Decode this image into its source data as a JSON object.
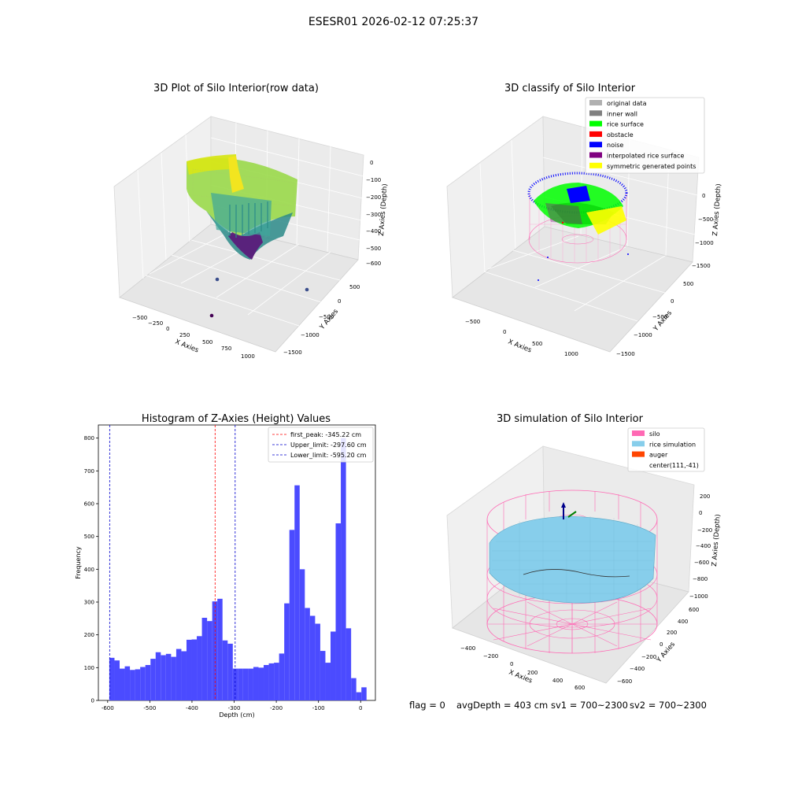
{
  "figure_title": "ESESR01 2026-02-12 07:25:37",
  "footer": {
    "flag": "flag = 0",
    "avg_depth": "avgDepth = 403 cm",
    "sv1": "sv1 = 700~2300",
    "sv2": "sv2 = 700~2300"
  },
  "colors": {
    "original": "#b0b0b0",
    "inner_wall": "#808080",
    "rice_surface": "#00ff00",
    "obstacle": "#ff0000",
    "noise": "#0000ff",
    "interp": "#800080",
    "symmetric": "#ffff00",
    "silo": "#ff69b4",
    "rice_sim": "#87ceeb",
    "auger": "#ff4500",
    "hist_bar": "#4b4bff",
    "peak_line": "#ff0000",
    "limit_line": "#0000cd"
  },
  "chart_data": [
    {
      "type": "scatter3d",
      "title": "3D Plot of Silo Interior(row data)",
      "xlabel": "X Axies",
      "ylabel": "Y Axies",
      "zlabel": "Z Axies (Depth)",
      "x_ticks": [
        "−500",
        "−250",
        "0",
        "250",
        "500",
        "750",
        "1000"
      ],
      "y_ticks": [
        "500",
        "0",
        "−500",
        "−1000",
        "−1500"
      ],
      "z_ticks": [
        "0",
        "−100",
        "−200",
        "−300",
        "−400",
        "−500",
        "−600"
      ]
    },
    {
      "type": "scatter3d",
      "title": "3D classify of Silo Interior",
      "xlabel": "X Axies",
      "ylabel": "Y Axies",
      "zlabel": "Z Axies (Depth)",
      "x_ticks": [
        "−500",
        "0",
        "500",
        "1000"
      ],
      "y_ticks": [
        "500",
        "0",
        "−500",
        "−1000",
        "−1500"
      ],
      "z_ticks": [
        "0",
        "−500",
        "−1000",
        "−1500"
      ],
      "legend": {
        "placement": "upper-right",
        "entries": [
          {
            "label": "original data",
            "color": "#b0b0b0"
          },
          {
            "label": "inner wall",
            "color": "#808080"
          },
          {
            "label": "rice surface",
            "color": "#00ff00"
          },
          {
            "label": "obstacle",
            "color": "#ff0000"
          },
          {
            "label": "noise",
            "color": "#0000ff"
          },
          {
            "label": "interpolated rice surface",
            "color": "#800080"
          },
          {
            "label": "symmetric generated points",
            "color": "#ffff00"
          }
        ]
      }
    },
    {
      "type": "bar",
      "title": "Histogram of Z-Axies (Height) Values",
      "xlabel": "Depth (cm)",
      "ylabel": "Frequency",
      "xlim": [
        -622,
        35
      ],
      "ylim": [
        0,
        840
      ],
      "x_ticks": [
        -600,
        -500,
        -400,
        -300,
        -200,
        -100,
        0
      ],
      "y_ticks": [
        0,
        100,
        200,
        300,
        400,
        500,
        600,
        700,
        800
      ],
      "bin_start": -596,
      "bin_width": 12.2,
      "values": [
        130,
        122,
        97,
        104,
        93,
        95,
        102,
        108,
        127,
        147,
        138,
        142,
        133,
        157,
        150,
        185,
        186,
        196,
        252,
        242,
        302,
        310,
        183,
        173,
        97,
        97,
        97,
        97,
        102,
        100,
        108,
        113,
        115,
        143,
        296,
        520,
        656,
        400,
        282,
        258,
        234,
        151,
        115,
        210,
        540,
        800,
        220,
        68,
        25,
        40
      ],
      "vlines": [
        {
          "label": "first_peak: -345.22 cm",
          "x": -345.22,
          "color": "#ff0000"
        },
        {
          "label": "Upper_limit: -297.60 cm",
          "x": -297.6,
          "color": "#0000cd"
        },
        {
          "label": "Lower_limit: -595.20 cm",
          "x": -595.2,
          "color": "#0000cd"
        }
      ]
    },
    {
      "type": "surface3d",
      "title": "3D simulation of Silo Interior",
      "xlabel": "X Axies",
      "ylabel": "Y Axies",
      "zlabel": "Z Axies (Depth)",
      "x_ticks": [
        "−400",
        "−200",
        "0",
        "200",
        "400",
        "600"
      ],
      "y_ticks": [
        "600",
        "400",
        "200",
        "0",
        "−200",
        "−400",
        "−600"
      ],
      "z_ticks": [
        "200",
        "0",
        "−200",
        "−400",
        "−600",
        "−800",
        "−1000"
      ],
      "legend": {
        "placement": "upper-right",
        "entries": [
          {
            "label": "silo",
            "color": "#ff69b4"
          },
          {
            "label": "rice simulation",
            "color": "#87ceeb"
          },
          {
            "label": "auger",
            "color": "#ff4500"
          },
          {
            "label": "center(111,-41)",
            "color": ""
          }
        ]
      }
    }
  ]
}
